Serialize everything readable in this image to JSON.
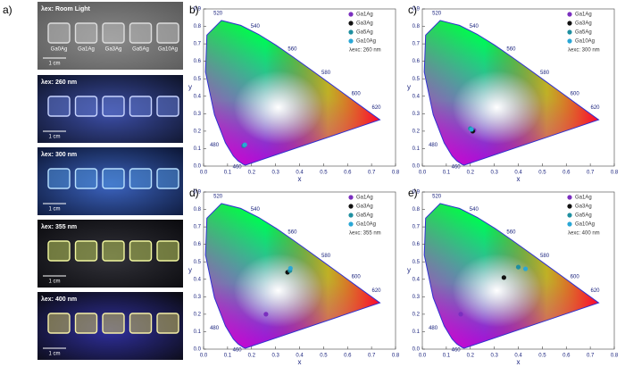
{
  "photos": {
    "panel_label": "a)",
    "samples": [
      "Ga0Ag",
      "Ga1Ag",
      "Ga3Ag",
      "Ga5Ag",
      "Ga10Ag"
    ],
    "panels": [
      {
        "caption": "λex: Room Light",
        "scale": "1 cm"
      },
      {
        "caption": "λex: 260 nm",
        "scale": "1 cm"
      },
      {
        "caption": "λex: 300 nm",
        "scale": "1 cm"
      },
      {
        "caption": "λex: 355 nm",
        "scale": "1 cm"
      },
      {
        "caption": "λex: 400 nm",
        "scale": "1 cm"
      }
    ]
  },
  "chart_data": [
    {
      "type": "scatter",
      "panel_label": "b)",
      "annotation": "λexc: 260 nm",
      "xlabel": "x",
      "ylabel": "y",
      "xlim": [
        0,
        0.8
      ],
      "ylim": [
        0,
        0.9
      ],
      "xticks": [
        {
          "value": 0,
          "label": "0.0"
        },
        0.1,
        0.2,
        0.3,
        0.4,
        0.5,
        0.6,
        0.7,
        0.8
      ],
      "yticks": [
        {
          "value": 0,
          "label": "0.0"
        },
        0.1,
        0.2,
        0.3,
        0.4,
        0.5,
        0.6,
        0.7,
        0.8,
        0.9
      ],
      "wavelength_labels": [
        460,
        480,
        520,
        540,
        560,
        580,
        600,
        620
      ],
      "series": [
        {
          "name": "Ga1Ag",
          "color": "#7b2fbf",
          "x": [
            0.165
          ],
          "y": [
            0.115
          ]
        },
        {
          "name": "Ga3Ag",
          "color": "#111111",
          "x": [
            0.17
          ],
          "y": [
            0.12
          ]
        },
        {
          "name": "Ga5Ag",
          "color": "#1f8fa0",
          "x": [
            0.168
          ],
          "y": [
            0.118
          ]
        },
        {
          "name": "Ga10Ag",
          "color": "#2aa7d6",
          "x": [
            0.172
          ],
          "y": [
            0.122
          ]
        }
      ]
    },
    {
      "type": "scatter",
      "panel_label": "c)",
      "annotation": "λexc: 300 nm",
      "xlabel": "x",
      "ylabel": "y",
      "xlim": [
        0,
        0.8
      ],
      "ylim": [
        0,
        0.9
      ],
      "xticks": [
        {
          "value": 0,
          "label": "0.0"
        },
        0.1,
        0.2,
        0.3,
        0.4,
        0.5,
        0.6,
        0.7,
        0.8
      ],
      "yticks": [
        {
          "value": 0,
          "label": "0.0"
        },
        0.1,
        0.2,
        0.3,
        0.4,
        0.5,
        0.6,
        0.7,
        0.8,
        0.9
      ],
      "wavelength_labels": [
        460,
        480,
        520,
        540,
        560,
        580,
        600,
        620
      ],
      "series": [
        {
          "name": "Ga1Ag",
          "color": "#7b2fbf",
          "x": [
            0.215
          ],
          "y": [
            0.205
          ]
        },
        {
          "name": "Ga3Ag",
          "color": "#111111",
          "x": [
            0.21
          ],
          "y": [
            0.2
          ]
        },
        {
          "name": "Ga5Ag",
          "color": "#1f8fa0",
          "x": [
            0.2
          ],
          "y": [
            0.215
          ]
        },
        {
          "name": "Ga10Ag",
          "color": "#2aa7d6",
          "x": [
            0.205
          ],
          "y": [
            0.21
          ]
        }
      ]
    },
    {
      "type": "scatter",
      "panel_label": "d)",
      "annotation": "λexc: 355 nm",
      "xlabel": "x",
      "ylabel": "y",
      "xlim": [
        0,
        0.8
      ],
      "ylim": [
        0,
        0.9
      ],
      "xticks": [
        {
          "value": 0,
          "label": "0.0"
        },
        0.1,
        0.2,
        0.3,
        0.4,
        0.5,
        0.6,
        0.7,
        0.8
      ],
      "yticks": [
        {
          "value": 0,
          "label": "0.0"
        },
        0.1,
        0.2,
        0.3,
        0.4,
        0.5,
        0.6,
        0.7,
        0.8,
        0.9
      ],
      "wavelength_labels": [
        460,
        480,
        520,
        540,
        560,
        580,
        600,
        620
      ],
      "series": [
        {
          "name": "Ga1Ag",
          "color": "#7b2fbf",
          "x": [
            0.26
          ],
          "y": [
            0.2
          ]
        },
        {
          "name": "Ga3Ag",
          "color": "#111111",
          "x": [
            0.35
          ],
          "y": [
            0.44
          ]
        },
        {
          "name": "Ga5Ag",
          "color": "#1f8fa0",
          "x": [
            0.36
          ],
          "y": [
            0.45
          ]
        },
        {
          "name": "Ga10Ag",
          "color": "#2aa7d6",
          "x": [
            0.362
          ],
          "y": [
            0.463
          ]
        }
      ]
    },
    {
      "type": "scatter",
      "panel_label": "e)",
      "annotation": "λexc: 400 nm",
      "xlabel": "x",
      "ylabel": "y",
      "xlim": [
        0,
        0.8
      ],
      "ylim": [
        0,
        0.9
      ],
      "xticks": [
        {
          "value": 0,
          "label": "0.0"
        },
        0.1,
        0.2,
        0.3,
        0.4,
        0.5,
        0.6,
        0.7,
        0.8
      ],
      "yticks": [
        {
          "value": 0,
          "label": "0.0"
        },
        0.1,
        0.2,
        0.3,
        0.4,
        0.5,
        0.6,
        0.7,
        0.8,
        0.9
      ],
      "wavelength_labels": [
        460,
        480,
        520,
        540,
        560,
        580,
        600,
        620
      ],
      "series": [
        {
          "name": "Ga1Ag",
          "color": "#7b2fbf",
          "x": [
            0.16
          ],
          "y": [
            0.2
          ]
        },
        {
          "name": "Ga3Ag",
          "color": "#111111",
          "x": [
            0.34
          ],
          "y": [
            0.41
          ]
        },
        {
          "name": "Ga5Ag",
          "color": "#1f8fa0",
          "x": [
            0.4
          ],
          "y": [
            0.47
          ]
        },
        {
          "name": "Ga10Ag",
          "color": "#2aa7d6",
          "x": [
            0.43
          ],
          "y": [
            0.46
          ]
        }
      ]
    }
  ]
}
